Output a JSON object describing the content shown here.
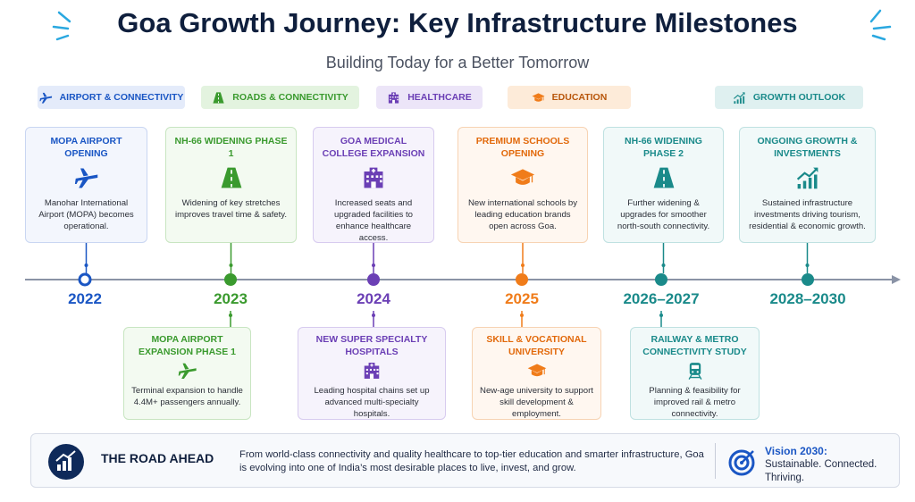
{
  "header": {
    "title": "Goa Growth Journey: Key Infrastructure Milestones",
    "subtitle": "Building Today for a Better Tomorrow"
  },
  "legend": [
    "AIRPORT & CONNECTIVITY",
    "ROADS & CONNECTIVITY",
    "HEALTHCARE",
    "EDUCATION",
    "GROWTH OUTLOOK"
  ],
  "timeline": {
    "years": [
      "2022",
      "2023",
      "2024",
      "2025",
      "2026–2027",
      "2028–2030"
    ]
  },
  "top_cards": [
    {
      "title": "MOPA AIRPORT OPENING",
      "text": "Manohar International Airport (MOPA) becomes operational."
    },
    {
      "title": "NH-66 WIDENING PHASE 1",
      "text": "Widening of key stretches improves travel time & safety."
    },
    {
      "title": "GOA MEDICAL COLLEGE EXPANSION",
      "text": "Increased seats and upgraded facilities to enhance healthcare access."
    },
    {
      "title": "PREMIUM SCHOOLS OPENING",
      "text": "New international schools by leading education brands open across Goa."
    },
    {
      "title": "NH-66 WIDENING PHASE 2",
      "text": "Further widening & upgrades for smoother north-south connectivity."
    },
    {
      "title": "ONGOING GROWTH & INVESTMENTS",
      "text": "Sustained infrastructure investments driving tourism, residential & economic growth."
    }
  ],
  "bottom_cards": [
    {
      "title": "MOPA AIRPORT EXPANSION PHASE 1",
      "text": "Terminal expansion to handle 4.4M+ passengers annually."
    },
    {
      "title": "NEW SUPER SPECIALTY HOSPITALS",
      "text": "Leading hospital chains set up advanced multi-specialty hospitals."
    },
    {
      "title": "SKILL & VOCATIONAL UNIVERSITY",
      "text": "New-age university to support skill development & employment."
    },
    {
      "title": "RAILWAY & METRO CONNECTIVITY STUDY",
      "text": "Planning & feasibility for improved rail & metro connectivity."
    }
  ],
  "footer": {
    "heading": "THE ROAD AHEAD",
    "text": "From world-class connectivity and quality healthcare to top-tier education and smarter infrastructure, Goa is evolving into one of India’s most desirable places to live, invest, and grow.",
    "vision_title": "Vision 2030:",
    "vision_text": "Sustainable. Connected. Thriving."
  }
}
